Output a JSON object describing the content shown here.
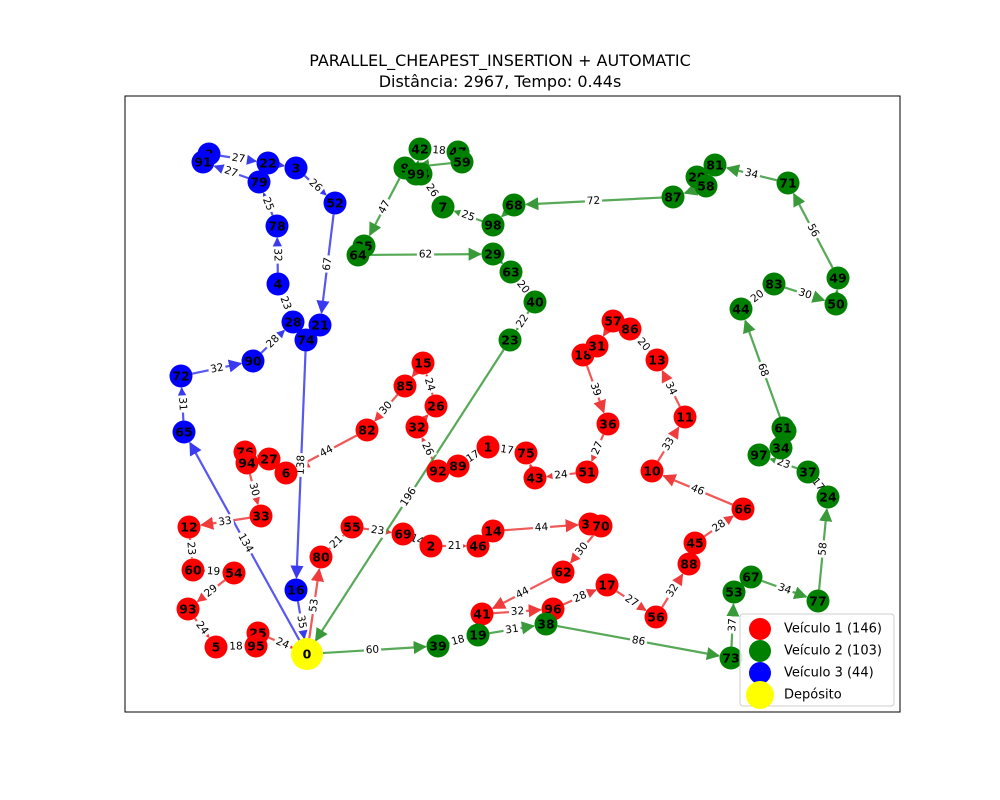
{
  "title": "PARALLEL_CHEAPEST_INSERTION + AUTOMATIC",
  "subtitle": "Distância: 2967, Tempo: 0.44s",
  "colors": {
    "vehicle1": "#ff0000",
    "vehicle2": "#008000",
    "vehicle3": "#0000ff",
    "depot": "#ffff00",
    "edge1": "#ef3b3b",
    "edge2": "#3a9a3a",
    "edge3": "#3a3aef"
  },
  "legend": [
    {
      "label": "Veículo 1 (146)",
      "color": "#ff0000"
    },
    {
      "label": "Veículo 2 (103)",
      "color": "#008000"
    },
    {
      "label": "Veículo 3 (44)",
      "color": "#0000ff"
    },
    {
      "label": "Depósito",
      "color": "#ffff00"
    }
  ],
  "nodes": [
    {
      "id": "0",
      "v": 0
    },
    {
      "id": "1",
      "v": 1
    },
    {
      "id": "2",
      "v": 1
    },
    {
      "id": "5",
      "v": 1
    },
    {
      "id": "6",
      "v": 1
    },
    {
      "id": "10",
      "v": 1
    },
    {
      "id": "11",
      "v": 1
    },
    {
      "id": "12",
      "v": 1
    },
    {
      "id": "13",
      "v": 1
    },
    {
      "id": "14",
      "v": 1
    },
    {
      "id": "15",
      "v": 1
    },
    {
      "id": "17",
      "v": 1
    },
    {
      "id": "18",
      "v": 1
    },
    {
      "id": "25",
      "v": 1
    },
    {
      "id": "26",
      "v": 1
    },
    {
      "id": "27",
      "v": 1
    },
    {
      "id": "30",
      "v": 1
    },
    {
      "id": "31",
      "v": 1
    },
    {
      "id": "32",
      "v": 1
    },
    {
      "id": "33",
      "v": 1
    },
    {
      "id": "36",
      "v": 1
    },
    {
      "id": "41",
      "v": 1
    },
    {
      "id": "43",
      "v": 1
    },
    {
      "id": "45",
      "v": 1
    },
    {
      "id": "46",
      "v": 1
    },
    {
      "id": "51",
      "v": 1
    },
    {
      "id": "54",
      "v": 1
    },
    {
      "id": "55",
      "v": 1
    },
    {
      "id": "56",
      "v": 1
    },
    {
      "id": "57",
      "v": 1
    },
    {
      "id": "60",
      "v": 1
    },
    {
      "id": "62",
      "v": 1
    },
    {
      "id": "66",
      "v": 1
    },
    {
      "id": "69",
      "v": 1
    },
    {
      "id": "70",
      "v": 1
    },
    {
      "id": "75",
      "v": 1
    },
    {
      "id": "76",
      "v": 1
    },
    {
      "id": "80",
      "v": 1
    },
    {
      "id": "82",
      "v": 1
    },
    {
      "id": "85",
      "v": 1
    },
    {
      "id": "86",
      "v": 1
    },
    {
      "id": "88",
      "v": 1
    },
    {
      "id": "89",
      "v": 1
    },
    {
      "id": "92",
      "v": 1
    },
    {
      "id": "93",
      "v": 1
    },
    {
      "id": "94",
      "v": 1
    },
    {
      "id": "95",
      "v": 1
    },
    {
      "id": "96",
      "v": 1
    },
    {
      "id": "7",
      "v": 2
    },
    {
      "id": "9",
      "v": 2
    },
    {
      "id": "19",
      "v": 2
    },
    {
      "id": "20",
      "v": 2
    },
    {
      "id": "23",
      "v": 2
    },
    {
      "id": "24",
      "v": 2
    },
    {
      "id": "29",
      "v": 2
    },
    {
      "id": "34",
      "v": 2
    },
    {
      "id": "35",
      "v": 2
    },
    {
      "id": "37",
      "v": 2
    },
    {
      "id": "38",
      "v": 2
    },
    {
      "id": "39",
      "v": 2
    },
    {
      "id": "40",
      "v": 2
    },
    {
      "id": "42",
      "v": 2
    },
    {
      "id": "44",
      "v": 2
    },
    {
      "id": "47",
      "v": 2
    },
    {
      "id": "48",
      "v": 2
    },
    {
      "id": "49",
      "v": 2
    },
    {
      "id": "50",
      "v": 2
    },
    {
      "id": "53",
      "v": 2
    },
    {
      "id": "58",
      "v": 2
    },
    {
      "id": "59",
      "v": 2
    },
    {
      "id": "61",
      "v": 2
    },
    {
      "id": "63",
      "v": 2
    },
    {
      "id": "64",
      "v": 2
    },
    {
      "id": "67",
      "v": 2
    },
    {
      "id": "68",
      "v": 2
    },
    {
      "id": "71",
      "v": 2
    },
    {
      "id": "73",
      "v": 2
    },
    {
      "id": "77",
      "v": 2
    },
    {
      "id": "81",
      "v": 2
    },
    {
      "id": "83",
      "v": 2
    },
    {
      "id": "84",
      "v": 2
    },
    {
      "id": "87",
      "v": 2
    },
    {
      "id": "97",
      "v": 2
    },
    {
      "id": "98",
      "v": 2
    },
    {
      "id": "99",
      "v": 2
    },
    {
      "id": "3",
      "v": 3
    },
    {
      "id": "4",
      "v": 3
    },
    {
      "id": "8",
      "v": 3
    },
    {
      "id": "16",
      "v": 3
    },
    {
      "id": "21",
      "v": 3
    },
    {
      "id": "22",
      "v": 3
    },
    {
      "id": "28",
      "v": 3
    },
    {
      "id": "52",
      "v": 3
    },
    {
      "id": "65",
      "v": 3
    },
    {
      "id": "72",
      "v": 3
    },
    {
      "id": "74",
      "v": 3
    },
    {
      "id": "78",
      "v": 3
    },
    {
      "id": "79",
      "v": 3
    },
    {
      "id": "90",
      "v": 3
    },
    {
      "id": "91",
      "v": 3
    }
  ],
  "edges": [
    {
      "from": "0",
      "to": "80",
      "w": "53",
      "v": 1
    },
    {
      "from": "80",
      "to": "55",
      "w": "21",
      "v": 1
    },
    {
      "from": "55",
      "to": "69",
      "w": "23",
      "v": 1
    },
    {
      "from": "69",
      "to": "2",
      "w": "14",
      "v": 1
    },
    {
      "from": "2",
      "to": "46",
      "w": "21",
      "v": 1
    },
    {
      "from": "46",
      "to": "14",
      "w": "",
      "v": 1
    },
    {
      "from": "14",
      "to": "30",
      "w": "44",
      "v": 1
    },
    {
      "from": "30",
      "to": "70",
      "w": "",
      "v": 1
    },
    {
      "from": "70",
      "to": "62",
      "w": "30",
      "v": 1
    },
    {
      "from": "62",
      "to": "41",
      "w": "44",
      "v": 1
    },
    {
      "from": "41",
      "to": "96",
      "w": "32",
      "v": 1
    },
    {
      "from": "96",
      "to": "17",
      "w": "28",
      "v": 1
    },
    {
      "from": "17",
      "to": "56",
      "w": "27",
      "v": 1
    },
    {
      "from": "56",
      "to": "88",
      "w": "32",
      "v": 1
    },
    {
      "from": "88",
      "to": "45",
      "w": "",
      "v": 1
    },
    {
      "from": "45",
      "to": "66",
      "w": "28",
      "v": 1
    },
    {
      "from": "66",
      "to": "10",
      "w": "46",
      "v": 1
    },
    {
      "from": "10",
      "to": "11",
      "w": "33",
      "v": 1
    },
    {
      "from": "11",
      "to": "13",
      "w": "34",
      "v": 1
    },
    {
      "from": "13",
      "to": "86",
      "w": "20",
      "v": 1
    },
    {
      "from": "86",
      "to": "57",
      "w": "",
      "v": 1
    },
    {
      "from": "57",
      "to": "31",
      "w": "",
      "v": 1
    },
    {
      "from": "31",
      "to": "18",
      "w": "",
      "v": 1
    },
    {
      "from": "18",
      "to": "36",
      "w": "39",
      "v": 1
    },
    {
      "from": "36",
      "to": "51",
      "w": "27",
      "v": 1
    },
    {
      "from": "51",
      "to": "43",
      "w": "24",
      "v": 1
    },
    {
      "from": "43",
      "to": "75",
      "w": "",
      "v": 1
    },
    {
      "from": "75",
      "to": "1",
      "w": "17",
      "v": 1
    },
    {
      "from": "1",
      "to": "89",
      "w": "17",
      "v": 1
    },
    {
      "from": "89",
      "to": "92",
      "w": "",
      "v": 1
    },
    {
      "from": "92",
      "to": "32",
      "w": "26",
      "v": 1
    },
    {
      "from": "32",
      "to": "26",
      "w": "",
      "v": 1
    },
    {
      "from": "26",
      "to": "15",
      "w": "24",
      "v": 1
    },
    {
      "from": "15",
      "to": "85",
      "w": "",
      "v": 1
    },
    {
      "from": "85",
      "to": "82",
      "w": "30",
      "v": 1
    },
    {
      "from": "82",
      "to": "6",
      "w": "44",
      "v": 1
    },
    {
      "from": "6",
      "to": "27",
      "w": "",
      "v": 1
    },
    {
      "from": "27",
      "to": "76",
      "w": "",
      "v": 1
    },
    {
      "from": "76",
      "to": "94",
      "w": "",
      "v": 1
    },
    {
      "from": "94",
      "to": "33",
      "w": "30",
      "v": 1
    },
    {
      "from": "33",
      "to": "12",
      "w": "33",
      "v": 1
    },
    {
      "from": "12",
      "to": "60",
      "w": "23",
      "v": 1
    },
    {
      "from": "60",
      "to": "54",
      "w": "19",
      "v": 1
    },
    {
      "from": "54",
      "to": "93",
      "w": "29",
      "v": 1
    },
    {
      "from": "93",
      "to": "5",
      "w": "24",
      "v": 1
    },
    {
      "from": "5",
      "to": "95",
      "w": "18",
      "v": 1
    },
    {
      "from": "95",
      "to": "25",
      "w": "",
      "v": 1
    },
    {
      "from": "25",
      "to": "0",
      "w": "24",
      "v": 1
    },
    {
      "from": "0",
      "to": "39",
      "w": "60",
      "v": 2
    },
    {
      "from": "39",
      "to": "19",
      "w": "18",
      "v": 2
    },
    {
      "from": "19",
      "to": "38",
      "w": "31",
      "v": 2
    },
    {
      "from": "38",
      "to": "73",
      "w": "86",
      "v": 2
    },
    {
      "from": "73",
      "to": "53",
      "w": "37",
      "v": 2
    },
    {
      "from": "53",
      "to": "67",
      "w": "",
      "v": 2
    },
    {
      "from": "67",
      "to": "77",
      "w": "34",
      "v": 2
    },
    {
      "from": "77",
      "to": "24",
      "w": "58",
      "v": 2
    },
    {
      "from": "24",
      "to": "37",
      "w": "17",
      "v": 2
    },
    {
      "from": "37",
      "to": "97",
      "w": "23",
      "v": 2
    },
    {
      "from": "97",
      "to": "34",
      "w": "",
      "v": 2
    },
    {
      "from": "34",
      "to": "61",
      "w": "",
      "v": 2
    },
    {
      "from": "61",
      "to": "48",
      "w": "",
      "v": 2
    },
    {
      "from": "48",
      "to": "44",
      "w": "68",
      "v": 2
    },
    {
      "from": "44",
      "to": "83",
      "w": "20",
      "v": 2
    },
    {
      "from": "83",
      "to": "50",
      "w": "30",
      "v": 2
    },
    {
      "from": "50",
      "to": "49",
      "w": "",
      "v": 2
    },
    {
      "from": "49",
      "to": "71",
      "w": "56",
      "v": 2
    },
    {
      "from": "71",
      "to": "81",
      "w": "34",
      "v": 2
    },
    {
      "from": "81",
      "to": "20",
      "w": "",
      "v": 2
    },
    {
      "from": "20",
      "to": "58",
      "w": "",
      "v": 2
    },
    {
      "from": "58",
      "to": "87",
      "w": "",
      "v": 2
    },
    {
      "from": "87",
      "to": "68",
      "w": "72",
      "v": 2
    },
    {
      "from": "68",
      "to": "98",
      "w": "",
      "v": 2
    },
    {
      "from": "98",
      "to": "7",
      "w": "25",
      "v": 2
    },
    {
      "from": "7",
      "to": "84",
      "w": "26",
      "v": 2
    },
    {
      "from": "84",
      "to": "99",
      "w": "",
      "v": 2
    },
    {
      "from": "99",
      "to": "42",
      "w": "",
      "v": 2
    },
    {
      "from": "42",
      "to": "47",
      "w": "18",
      "v": 2
    },
    {
      "from": "47",
      "to": "59",
      "w": "",
      "v": 2
    },
    {
      "from": "59",
      "to": "9",
      "w": "",
      "v": 2
    },
    {
      "from": "9",
      "to": "35",
      "w": "47",
      "v": 2
    },
    {
      "from": "35",
      "to": "64",
      "w": "",
      "v": 2
    },
    {
      "from": "64",
      "to": "29",
      "w": "62",
      "v": 2
    },
    {
      "from": "29",
      "to": "63",
      "w": "",
      "v": 2
    },
    {
      "from": "63",
      "to": "40",
      "w": "20",
      "v": 2
    },
    {
      "from": "40",
      "to": "23",
      "w": "22",
      "v": 2
    },
    {
      "from": "23",
      "to": "0",
      "w": "196",
      "v": 2
    },
    {
      "from": "0",
      "to": "65",
      "w": "134",
      "v": 3
    },
    {
      "from": "65",
      "to": "72",
      "w": "31",
      "v": 3
    },
    {
      "from": "72",
      "to": "90",
      "w": "32",
      "v": 3
    },
    {
      "from": "90",
      "to": "28",
      "w": "28",
      "v": 3
    },
    {
      "from": "28",
      "to": "4",
      "w": "23",
      "v": 3
    },
    {
      "from": "4",
      "to": "78",
      "w": "32",
      "v": 3
    },
    {
      "from": "78",
      "to": "79",
      "w": "25",
      "v": 3
    },
    {
      "from": "79",
      "to": "91",
      "w": "27",
      "v": 3
    },
    {
      "from": "91",
      "to": "8",
      "w": "",
      "v": 3
    },
    {
      "from": "8",
      "to": "22",
      "w": "27",
      "v": 3
    },
    {
      "from": "22",
      "to": "3",
      "w": "",
      "v": 3
    },
    {
      "from": "3",
      "to": "52",
      "w": "26",
      "v": 3
    },
    {
      "from": "52",
      "to": "21",
      "w": "67",
      "v": 3
    },
    {
      "from": "21",
      "to": "74",
      "w": "",
      "v": 3
    },
    {
      "from": "74",
      "to": "16",
      "w": "138",
      "v": 3
    },
    {
      "from": "16",
      "to": "0",
      "w": "35",
      "v": 3
    }
  ]
}
